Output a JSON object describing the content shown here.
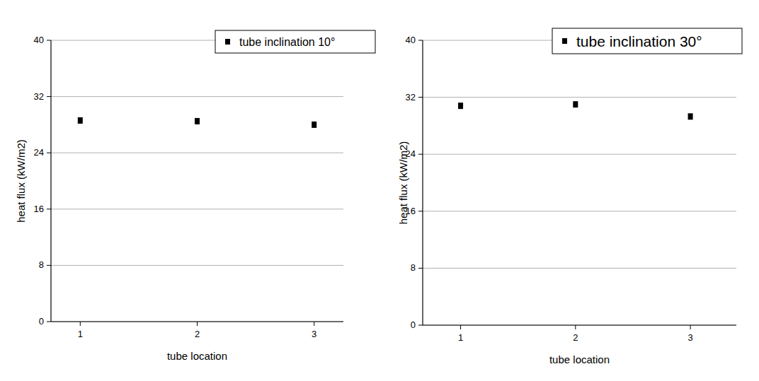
{
  "chart_data": [
    {
      "type": "scatter",
      "x_label": "tube location",
      "y_label": "heat flux (kW/m2)",
      "x": [
        1,
        2,
        3
      ],
      "series": [
        {
          "name": "tube inclination 10°",
          "color": "#000000",
          "marker": "square",
          "values": [
            28.6,
            28.5,
            28.0
          ]
        }
      ],
      "xlim": [
        0.75,
        3.25
      ],
      "xticks": [
        1,
        2,
        3
      ],
      "ylim": [
        0,
        40
      ],
      "yticks": [
        0,
        8,
        16,
        24,
        32,
        40
      ],
      "grid": true,
      "legend": "upper right"
    },
    {
      "type": "scatter",
      "x_label": "tube location",
      "y_label": "heat flux (kW/m2)",
      "x": [
        1,
        2,
        3
      ],
      "series": [
        {
          "name": "tube inclination 30°",
          "color": "#000000",
          "marker": "square",
          "values": [
            30.8,
            31.0,
            29.3
          ]
        }
      ],
      "xlim": [
        0.67,
        3.4
      ],
      "xticks": [
        1,
        2,
        3
      ],
      "ylim": [
        0,
        40
      ],
      "yticks": [
        0,
        8,
        16,
        24,
        32,
        40
      ],
      "grid": true,
      "legend": "upper right"
    }
  ]
}
